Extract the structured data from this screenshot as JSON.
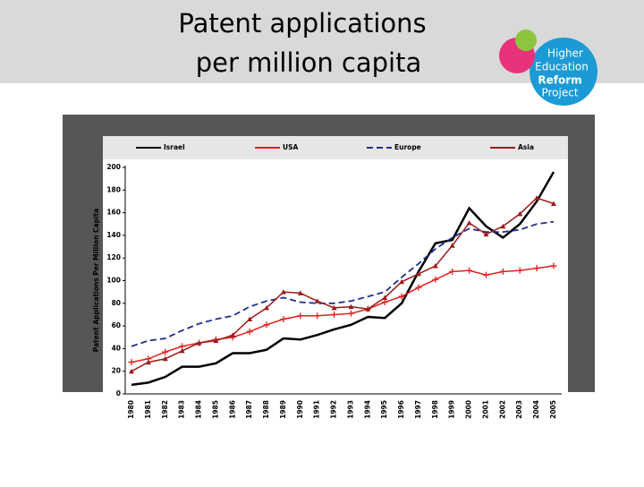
{
  "slide": {
    "title_lines": [
      "Patent applications",
      "per million capita"
    ],
    "logo_lines": [
      "Higher",
      "Education",
      "Reform",
      "Project"
    ]
  },
  "chart_data": {
    "type": "line",
    "y_label": "Patent Applications Per Million Capita",
    "categories": [
      "1980",
      "1981",
      "1982",
      "1983",
      "1984",
      "1985",
      "1986",
      "1987",
      "1988",
      "1989",
      "1990",
      "1991",
      "1992",
      "1993",
      "1994",
      "1995",
      "1996",
      "1997",
      "1998",
      "1999",
      "2000",
      "2001",
      "2002",
      "2003",
      "2004",
      "2005"
    ],
    "series": [
      {
        "name": "Israel",
        "color": "#000000",
        "values": [
          8,
          10,
          15,
          24,
          24,
          27,
          36,
          36,
          39,
          49,
          48,
          52,
          57,
          61,
          68,
          67,
          80,
          108,
          133,
          136,
          164,
          148,
          138,
          150,
          170,
          196
        ]
      },
      {
        "name": "USA",
        "color": "#e02020",
        "values": [
          28,
          31,
          37,
          42,
          45,
          48,
          50,
          55,
          61,
          66,
          69,
          69,
          70,
          71,
          75,
          81,
          86,
          94,
          101,
          108,
          109,
          105,
          108,
          109,
          111,
          113
        ]
      },
      {
        "name": "Europe",
        "color": "#1f2f8f",
        "values": [
          42,
          47,
          49,
          56,
          62,
          66,
          69,
          77,
          82,
          85,
          81,
          80,
          80,
          82,
          86,
          90,
          103,
          115,
          128,
          138,
          146,
          143,
          143,
          145,
          150,
          152
        ]
      },
      {
        "name": "Asia",
        "color": "#9b1b1b",
        "values": [
          20,
          28,
          31,
          38,
          45,
          47,
          52,
          66,
          76,
          90,
          89,
          82,
          76,
          77,
          75,
          85,
          99,
          106,
          113,
          131,
          151,
          141,
          148,
          159,
          173,
          168
        ]
      }
    ],
    "ylim": [
      0,
      200
    ],
    "yticks": [
      0,
      20,
      40,
      60,
      80,
      100,
      120,
      140,
      160,
      180,
      200
    ],
    "grid": false
  }
}
